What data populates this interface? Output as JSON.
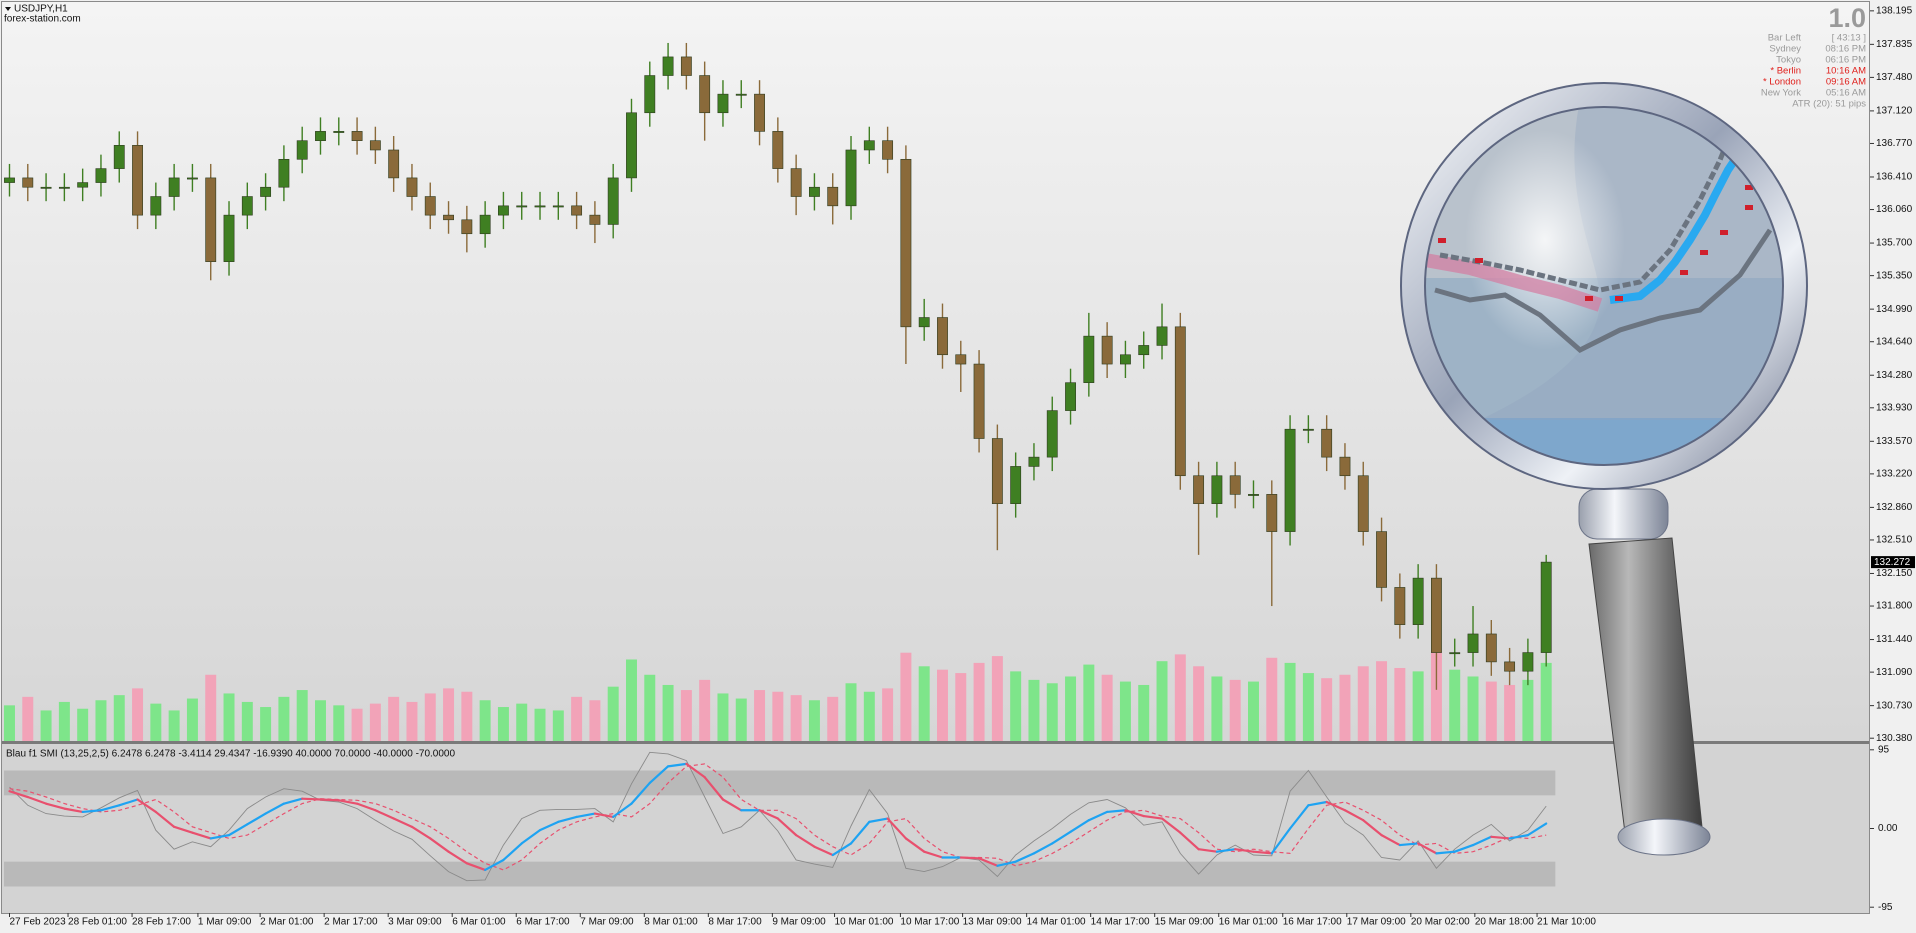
{
  "chart_data": [
    {
      "type": "candlestick",
      "title": "USDJPY,H1",
      "subtitle": "forex-station.com",
      "open": [
        136.35,
        136.4,
        136.3,
        136.3,
        136.3,
        136.35,
        136.5,
        136.75,
        136.0,
        136.2,
        136.4,
        136.4,
        135.5,
        136.0,
        136.2,
        136.3,
        136.6,
        136.8,
        136.9,
        136.9,
        136.8,
        136.7,
        136.4,
        136.2,
        136.0,
        135.95,
        135.8,
        136.0,
        136.1,
        136.1,
        136.1,
        136.1,
        136.0,
        135.9,
        136.4,
        137.1,
        137.5,
        137.7,
        137.5,
        137.1,
        137.3,
        137.3,
        136.9,
        136.5,
        136.2,
        136.3,
        136.1,
        136.7,
        136.8,
        136.6,
        134.8,
        134.9,
        134.5,
        134.4,
        133.6,
        132.9,
        133.3,
        133.4,
        133.9,
        134.2,
        134.7,
        134.4,
        134.5,
        134.6,
        134.8,
        133.2,
        132.9,
        133.2,
        133.0,
        133.0,
        132.6,
        133.7,
        133.7,
        133.4,
        133.2,
        132.6,
        132.0,
        131.6,
        132.1,
        131.3,
        131.3,
        131.5,
        131.2,
        131.1,
        131.3
      ],
      "high": [
        136.55,
        136.55,
        136.45,
        136.45,
        136.5,
        136.65,
        136.9,
        136.9,
        136.35,
        136.55,
        136.55,
        136.55,
        136.15,
        136.35,
        136.45,
        136.75,
        136.95,
        137.05,
        137.05,
        137.05,
        136.95,
        136.85,
        136.55,
        136.35,
        136.15,
        136.1,
        136.15,
        136.25,
        136.25,
        136.25,
        136.25,
        136.25,
        136.15,
        136.55,
        137.25,
        137.65,
        137.85,
        137.85,
        137.65,
        137.45,
        137.45,
        137.45,
        137.05,
        136.65,
        136.45,
        136.45,
        136.85,
        136.95,
        136.95,
        136.75,
        135.1,
        135.05,
        134.65,
        134.55,
        133.75,
        133.45,
        133.55,
        134.05,
        134.35,
        134.95,
        134.85,
        134.65,
        134.75,
        135.05,
        134.95,
        133.35,
        133.35,
        133.35,
        133.15,
        133.15,
        133.85,
        133.85,
        133.85,
        133.55,
        133.35,
        132.75,
        132.15,
        132.25,
        132.25,
        131.45,
        131.8,
        131.65,
        131.35,
        131.45,
        132.35
      ],
      "low": [
        136.2,
        136.15,
        136.15,
        136.15,
        136.15,
        136.2,
        136.35,
        135.85,
        135.85,
        136.05,
        136.25,
        135.3,
        135.35,
        135.85,
        136.05,
        136.15,
        136.45,
        136.65,
        136.75,
        136.65,
        136.55,
        136.25,
        136.05,
        135.85,
        135.8,
        135.6,
        135.65,
        135.85,
        135.95,
        135.95,
        135.95,
        135.85,
        135.7,
        135.75,
        136.25,
        136.95,
        137.35,
        137.35,
        136.8,
        136.95,
        137.15,
        136.75,
        136.35,
        136.0,
        136.05,
        135.9,
        135.95,
        136.55,
        136.45,
        134.4,
        134.65,
        134.35,
        134.1,
        133.45,
        132.4,
        132.75,
        133.15,
        133.25,
        133.75,
        134.05,
        134.25,
        134.25,
        134.35,
        134.45,
        133.05,
        132.35,
        132.75,
        132.85,
        132.85,
        131.8,
        132.45,
        133.55,
        133.25,
        133.05,
        132.45,
        131.85,
        131.45,
        131.45,
        130.9,
        131.15,
        131.15,
        131.05,
        130.95,
        130.95,
        131.15
      ],
      "close": [
        136.4,
        136.3,
        136.3,
        136.3,
        136.35,
        136.5,
        136.75,
        136.0,
        136.2,
        136.4,
        136.4,
        135.5,
        136.0,
        136.2,
        136.3,
        136.6,
        136.8,
        136.9,
        136.9,
        136.8,
        136.7,
        136.4,
        136.2,
        136.0,
        135.95,
        135.8,
        136.0,
        136.1,
        136.1,
        136.1,
        136.1,
        136.0,
        135.9,
        136.4,
        137.1,
        137.5,
        137.7,
        137.5,
        137.1,
        137.3,
        137.3,
        136.9,
        136.5,
        136.2,
        136.3,
        136.1,
        136.7,
        136.8,
        136.6,
        134.8,
        134.9,
        134.5,
        134.4,
        133.6,
        132.9,
        133.3,
        133.4,
        133.9,
        134.2,
        134.7,
        134.4,
        134.5,
        134.6,
        134.8,
        133.2,
        132.9,
        133.2,
        133.0,
        133.0,
        132.6,
        133.7,
        133.7,
        133.4,
        133.2,
        132.6,
        132.0,
        131.6,
        132.1,
        131.3,
        131.3,
        131.5,
        131.2,
        131.1,
        131.3,
        132.272
      ],
      "volume": [
        2100,
        2600,
        1800,
        2300,
        1900,
        2400,
        2700,
        3100,
        2200,
        1800,
        2500,
        3900,
        2800,
        2300,
        2000,
        2600,
        3000,
        2400,
        2100,
        1900,
        2200,
        2600,
        2300,
        2800,
        3100,
        2900,
        2400,
        2000,
        2200,
        1900,
        1800,
        2600,
        2400,
        3200,
        4800,
        3900,
        3300,
        3000,
        3600,
        2800,
        2500,
        3000,
        2900,
        2700,
        2400,
        2600,
        3400,
        2900,
        3100,
        5200,
        4400,
        4200,
        4000,
        4600,
        5000,
        4100,
        3600,
        3400,
        3800,
        4500,
        3900,
        3500,
        3300,
        4700,
        5100,
        4400,
        3800,
        3600,
        3500,
        4900,
        4600,
        4000,
        3700,
        3900,
        4400,
        4700,
        4300,
        4100,
        5300,
        4200,
        3800,
        3500,
        3300,
        3600,
        4600
      ],
      "colors": {
        "up": "#3f7f22",
        "down": "#8a6a3a",
        "volume_up": "#7ee58a",
        "volume_down": "#f2a3b8"
      },
      "last": 132.272,
      "xlim": [
        -0.3,
        101.7
      ],
      "ylim": [
        130.35,
        138.29
      ],
      "yticks": [
        {
          "value": 138.195,
          "label": "138.195"
        },
        {
          "value": 137.835,
          "label": "137.835"
        },
        {
          "value": 137.48,
          "label": "137.480"
        },
        {
          "value": 137.12,
          "label": "137.120"
        },
        {
          "value": 136.77,
          "label": "136.770"
        },
        {
          "value": 136.41,
          "label": "136.410"
        },
        {
          "value": 136.06,
          "label": "136.060"
        },
        {
          "value": 135.7,
          "label": "135.700"
        },
        {
          "value": 135.35,
          "label": "135.350"
        },
        {
          "value": 134.99,
          "label": "134.990"
        },
        {
          "value": 134.64,
          "label": "134.640"
        },
        {
          "value": 134.28,
          "label": "134.280"
        },
        {
          "value": 133.93,
          "label": "133.930"
        },
        {
          "value": 133.57,
          "label": "133.570"
        },
        {
          "value": 133.22,
          "label": "133.220"
        },
        {
          "value": 132.86,
          "label": "132.860"
        },
        {
          "value": 132.51,
          "label": "132.510"
        },
        {
          "value": 132.15,
          "label": "132.150"
        },
        {
          "value": 131.8,
          "label": "131.800"
        },
        {
          "value": 131.44,
          "label": "131.440"
        },
        {
          "value": 131.09,
          "label": "131.090"
        },
        {
          "value": 130.73,
          "label": "130.730"
        },
        {
          "value": 130.38,
          "label": "130.380"
        }
      ],
      "grid": false,
      "info": {
        "version": "1.0",
        "atr": "ATR (20): 51 pips",
        "rows": [
          {
            "label": "Bar Left",
            "value": "[ 43:13 ]",
            "color": "#9a9a9a"
          },
          {
            "label": "Sydney",
            "value": "08:16 PM",
            "color": "#9a9a9a"
          },
          {
            "label": "Tokyo",
            "value": "06:16 PM",
            "color": "#9a9a9a"
          },
          {
            "label": "* Berlin",
            "value": "10:16 AM",
            "color": "#e0201c"
          },
          {
            "label": "* London",
            "value": "09:16 AM",
            "color": "#e0201c"
          },
          {
            "label": "New York",
            "value": "05:16 AM",
            "color": "#9a9a9a"
          }
        ]
      }
    },
    {
      "type": "line",
      "title": "Blau f1 SMI (13,25,2,5) 6.2478 6.2478 -3.4114 29.4347 -16.9390 40.0000 70.0000 -40.0000 -70.0000",
      "series": [
        {
          "color": "#8a8a8a",
          "values": [
            50,
            28,
            18,
            15,
            14,
            25,
            37,
            46,
            -2,
            -25,
            -16,
            -22,
            -2,
            24,
            38,
            48,
            45,
            34,
            32,
            24,
            10,
            -3,
            -13,
            -33,
            -52,
            -63,
            -62,
            -20,
            12,
            22,
            23,
            23,
            24,
            8,
            54,
            92,
            90,
            82,
            38,
            -6,
            2,
            22,
            -3,
            -38,
            -43,
            -47,
            3,
            47,
            18,
            -48,
            -52,
            -46,
            -35,
            -38,
            -58,
            -32,
            -15,
            0,
            17,
            31,
            35,
            25,
            4,
            8,
            -30,
            -55,
            -32,
            -20,
            -32,
            -33,
            45,
            70,
            38,
            7,
            -8,
            -35,
            -38,
            -15,
            -48,
            -25,
            -8,
            5,
            -15,
            -2,
            27
          ]
        },
        {
          "color": "#e8506e",
          "dash": true,
          "values": [
            48,
            45,
            38,
            30,
            24,
            20,
            22,
            28,
            35,
            20,
            2,
            -5,
            -12,
            -8,
            5,
            18,
            30,
            36,
            35,
            34,
            30,
            22,
            12,
            2,
            -12,
            -28,
            -42,
            -50,
            -38,
            -18,
            -2,
            8,
            14,
            18,
            14,
            30,
            55,
            75,
            78,
            62,
            35,
            22,
            22,
            12,
            -8,
            -22,
            -32,
            -18,
            8,
            12,
            -12,
            -28,
            -35,
            -35,
            -36,
            -45,
            -40,
            -30,
            -18,
            -4,
            10,
            20,
            22,
            15,
            12,
            -5,
            -25,
            -28,
            -25,
            -28,
            -30,
            0,
            28,
            32,
            22,
            10,
            -8,
            -20,
            -18,
            -30,
            -28,
            -20,
            -10,
            -12,
            -8
          ]
        },
        {
          "color": "#1ea3f2",
          "down_color": "#e8506e",
          "values": [
            45,
            38,
            30,
            24,
            20,
            22,
            28,
            35,
            20,
            2,
            -5,
            -12,
            -8,
            5,
            18,
            30,
            36,
            35,
            34,
            30,
            22,
            12,
            2,
            -12,
            -28,
            -42,
            -50,
            -38,
            -18,
            -2,
            8,
            14,
            18,
            14,
            30,
            55,
            75,
            78,
            62,
            35,
            22,
            22,
            12,
            -8,
            -22,
            -32,
            -18,
            8,
            12,
            -12,
            -28,
            -35,
            -35,
            -36,
            -45,
            -40,
            -30,
            -18,
            -4,
            10,
            20,
            22,
            15,
            12,
            -5,
            -25,
            -28,
            -25,
            -28,
            -30,
            0,
            28,
            32,
            22,
            10,
            -8,
            -20,
            -18,
            -30,
            -28,
            -20,
            -10,
            -12,
            -8,
            6
          ]
        }
      ],
      "bands": [
        [
          40,
          70
        ],
        [
          -40,
          -70
        ]
      ],
      "xlim": [
        -0.3,
        101.7
      ],
      "ylim": [
        -102,
        102
      ],
      "yticks": [
        95,
        {
          "value": 0,
          "label": "0.00"
        },
        -95
      ],
      "xticks": [
        {
          "value": 0,
          "label": "27 Feb 2023"
        },
        {
          "value": 3.2,
          "label": "28 Feb 01:00"
        },
        {
          "value": 6.7,
          "label": "28 Feb 17:00"
        },
        {
          "value": 10.3,
          "label": "1 Mar 09:00"
        },
        {
          "value": 13.7,
          "label": "2 Mar 01:00"
        },
        {
          "value": 17.2,
          "label": "2 Mar 17:00"
        },
        {
          "value": 20.7,
          "label": "3 Mar 09:00"
        },
        {
          "value": 24.2,
          "label": "6 Mar 01:00"
        },
        {
          "value": 27.7,
          "label": "6 Mar 17:00"
        },
        {
          "value": 31.2,
          "label": "7 Mar 09:00"
        },
        {
          "value": 34.7,
          "label": "8 Mar 01:00"
        },
        {
          "value": 38.2,
          "label": "8 Mar 17:00"
        },
        {
          "value": 41.7,
          "label": "9 Mar 09:00"
        },
        {
          "value": 45.1,
          "label": "10 Mar 01:00"
        },
        {
          "value": 48.7,
          "label": "10 Mar 17:00"
        },
        {
          "value": 52.1,
          "label": "13 Mar 09:00"
        },
        {
          "value": 55.6,
          "label": "14 Mar 01:00"
        },
        {
          "value": 59.1,
          "label": "14 Mar 17:00"
        },
        {
          "value": 62.6,
          "label": "15 Mar 09:00"
        },
        {
          "value": 66.1,
          "label": "16 Mar 01:00"
        },
        {
          "value": 69.6,
          "label": "16 Mar 17:00"
        },
        {
          "value": 73.1,
          "label": "17 Mar 09:00"
        },
        {
          "value": 76.6,
          "label": "20 Mar 02:00"
        },
        {
          "value": 80.1,
          "label": "20 Mar 18:00"
        },
        {
          "value": 83.5,
          "label": "21 Mar 10:00"
        }
      ]
    }
  ]
}
